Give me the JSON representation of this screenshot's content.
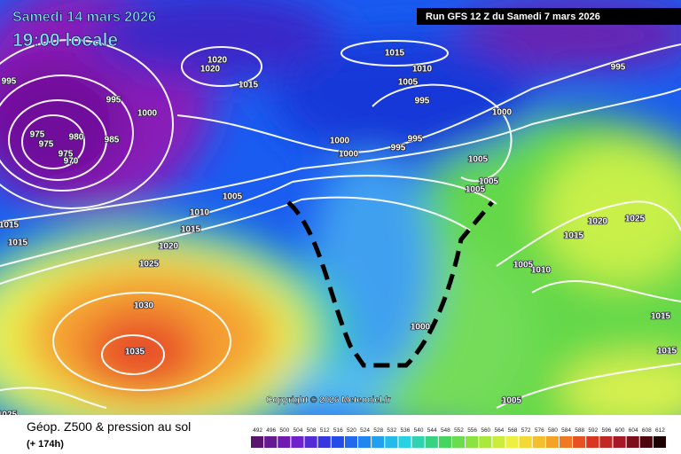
{
  "header": {
    "date": "Samedi 14 mars 2026",
    "time": "19:00 locale",
    "run": "Run GFS 12 Z du Samedi 7 mars 2026"
  },
  "copyright": "Copyright © 2026 Meteociel.fr",
  "legend": {
    "title": "Géop. Z500 & pression au sol",
    "lead": "(+ 174h)",
    "scale": [
      492,
      496,
      500,
      504,
      508,
      512,
      516,
      520,
      524,
      528,
      532,
      536,
      540,
      544,
      548,
      552,
      556,
      560,
      564,
      568,
      572,
      576,
      580,
      584,
      588,
      592,
      596,
      600,
      604,
      608,
      612
    ]
  },
  "isobar_labels": [
    995,
    1015,
    1010,
    1005,
    995,
    995,
    1000,
    1020,
    1020,
    1015,
    995,
    1000,
    975,
    980,
    985,
    975,
    975,
    970,
    995,
    995,
    1000,
    1000,
    1005,
    1005,
    1005,
    1005,
    1010,
    1015,
    1015,
    1015,
    1020,
    1025,
    1030,
    1035,
    1025,
    1020,
    1025,
    1015,
    1010,
    1005,
    1000,
    1015,
    1015,
    1005
  ]
}
